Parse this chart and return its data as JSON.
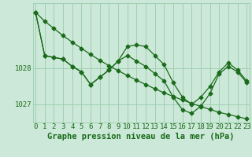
{
  "xlabel": "Graphe pression niveau de la mer (hPa)",
  "hours": [
    0,
    1,
    2,
    3,
    4,
    5,
    6,
    7,
    8,
    9,
    10,
    11,
    12,
    13,
    14,
    15,
    16,
    17,
    18,
    19,
    20,
    21,
    22,
    23
  ],
  "line1_trend": [
    1029.55,
    1029.3,
    1029.1,
    1028.9,
    1028.72,
    1028.55,
    1028.38,
    1028.22,
    1028.07,
    1027.93,
    1027.8,
    1027.67,
    1027.55,
    1027.43,
    1027.32,
    1027.22,
    1027.12,
    1027.03,
    1026.94,
    1026.86,
    1026.78,
    1026.72,
    1026.66,
    1026.6
  ],
  "line2_wavy": [
    1029.55,
    1028.35,
    1028.3,
    1028.25,
    1028.05,
    1027.9,
    1027.55,
    1027.75,
    1027.95,
    1028.2,
    1028.6,
    1028.65,
    1028.6,
    1028.35,
    1028.1,
    1027.6,
    1027.2,
    1027.0,
    1027.2,
    1027.5,
    1027.9,
    1028.15,
    1027.95,
    1027.65
  ],
  "line3_mid": [
    1029.55,
    1028.35,
    1028.3,
    1028.25,
    1028.05,
    1027.9,
    1027.55,
    1027.75,
    1027.95,
    1028.2,
    1028.35,
    1028.2,
    1028.05,
    1027.85,
    1027.65,
    1027.2,
    1026.85,
    1026.75,
    1026.95,
    1027.3,
    1027.85,
    1028.05,
    1027.9,
    1027.6
  ],
  "line_color": "#1a6b1a",
  "marker": "D",
  "marker_size": 2.5,
  "bg_color": "#cce8d8",
  "grid_color": "#99ccaa",
  "ylim": [
    1026.5,
    1029.8
  ],
  "yticks": [
    1027,
    1028
  ],
  "xlim": [
    -0.3,
    23.3
  ],
  "label_fontsize": 7.5,
  "tick_fontsize": 6.5
}
